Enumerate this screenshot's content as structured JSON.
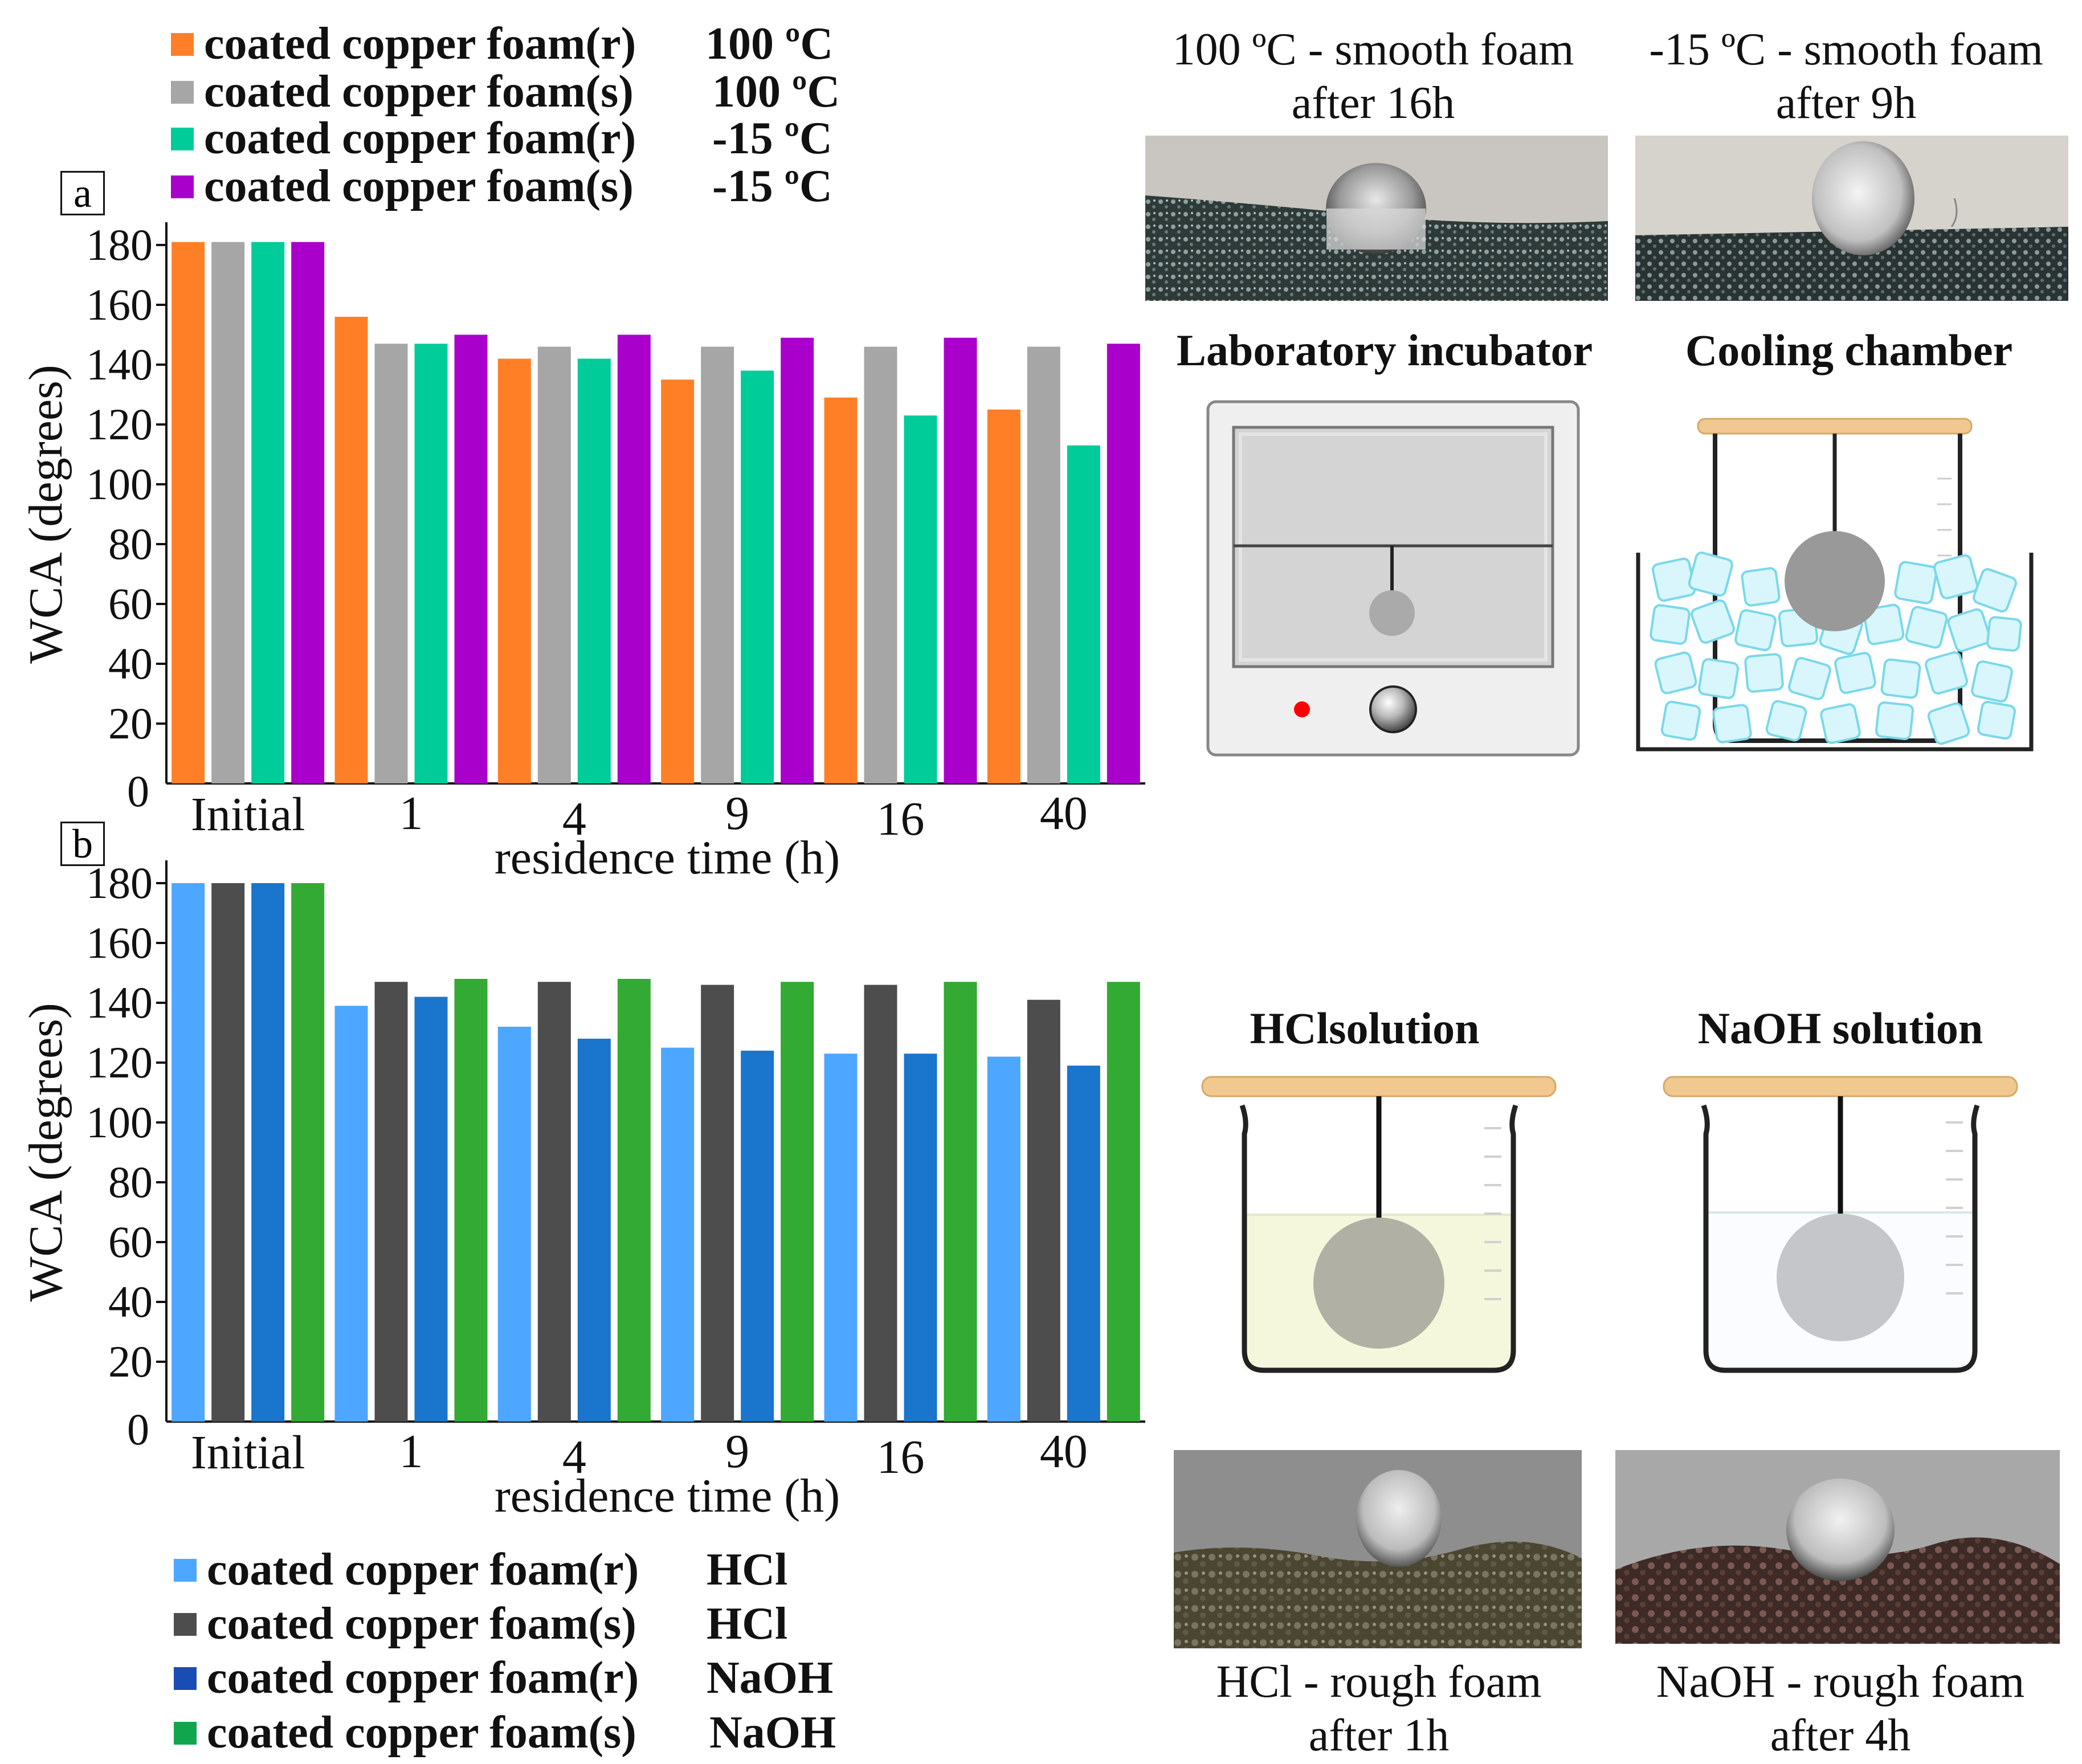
{
  "panel_labels": {
    "a": "a",
    "b": "b"
  },
  "chart_data": [
    {
      "type": "bar",
      "panel": "a",
      "title": "",
      "xlabel": "residence time (h)",
      "ylabel": "WCA (degrees)",
      "ylim": [
        0,
        180
      ],
      "yticks": [
        "0",
        "20",
        "40",
        "60",
        "80",
        "100",
        "120",
        "140",
        "160",
        "180"
      ],
      "categories": [
        "Initial",
        "1",
        "4",
        "9",
        "16",
        "40"
      ],
      "series": [
        {
          "name": "coated copper foam(r)",
          "condition": "100 ºC",
          "color": "#ff7f27",
          "values": [
            181,
            156,
            142,
            135,
            129,
            125
          ]
        },
        {
          "name": "coated copper foam(s)",
          "condition": "100 ºC",
          "color": "#a6a6a6",
          "values": [
            181,
            147,
            146,
            146,
            146,
            146
          ]
        },
        {
          "name": "coated copper foam(r)",
          "condition": "-15 ºC",
          "color": "#00cc99",
          "values": [
            181,
            147,
            142,
            138,
            123,
            113
          ]
        },
        {
          "name": "coated copper foam(s)",
          "condition": "-15 ºC",
          "color": "#aa00cc",
          "values": [
            181,
            150,
            150,
            149,
            149,
            147
          ]
        }
      ]
    },
    {
      "type": "bar",
      "panel": "b",
      "title": "",
      "xlabel": "residence time (h)",
      "ylabel": "WCA (degrees)",
      "ylim": [
        0,
        180
      ],
      "yticks": [
        "0",
        "20",
        "40",
        "60",
        "80",
        "100",
        "120",
        "140",
        "160",
        "180"
      ],
      "categories": [
        "Initial",
        "1",
        "4",
        "9",
        "16",
        "40"
      ],
      "series": [
        {
          "name": "coated copper foam(r)",
          "condition": "HCl",
          "color": "#4da6ff",
          "values": [
            180,
            139,
            132,
            125,
            123,
            122
          ]
        },
        {
          "name": "coated copper foam(s)",
          "condition": "HCl",
          "color": "#4d4d4d",
          "values": [
            180,
            147,
            147,
            146,
            146,
            141
          ]
        },
        {
          "name": "coated copper foam(r)",
          "condition": "NaOH",
          "color": "#1a75cc",
          "values": [
            180,
            142,
            128,
            124,
            123,
            119
          ]
        },
        {
          "name": "coated copper foam(s)",
          "condition": "NaOH",
          "color": "#33aa33",
          "values": [
            180,
            148,
            148,
            147,
            147,
            147
          ]
        }
      ]
    }
  ],
  "photos": {
    "top_left": {
      "line1": "100 ºC - smooth foam",
      "line2": "after 16h"
    },
    "top_right": {
      "line1": "-15 ºC - smooth foam",
      "line2": "after 9h"
    },
    "bottom_left": {
      "line1": "HCl - rough foam",
      "line2": "after 1h"
    },
    "bottom_right": {
      "line1": "NaOH - rough foam",
      "line2": "after 4h"
    }
  },
  "apparatus": {
    "incubator": "Laboratory incubator",
    "cooling": "Cooling chamber",
    "hcl": "HClsolution",
    "naoh": "NaOH solution"
  },
  "colors": {
    "incubator_light": "#ff0000",
    "beaker_lid": "#f0c890",
    "hcl_liquid": "#f5f7dc",
    "naoh_liquid": "#fafcff"
  }
}
